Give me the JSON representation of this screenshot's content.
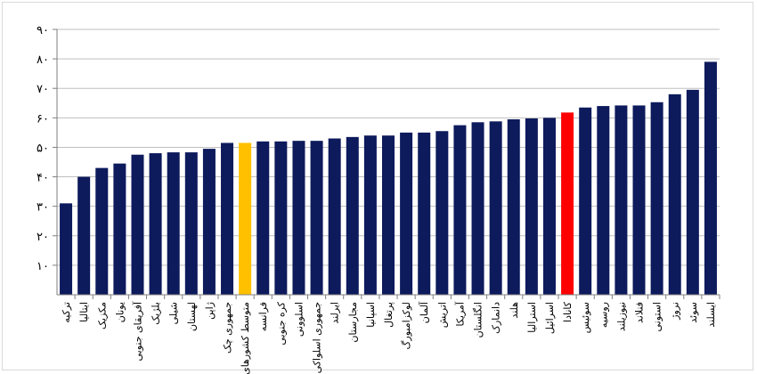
{
  "chart_data": {
    "type": "bar",
    "title": "",
    "xlabel": "",
    "ylabel": "",
    "ylim": [
      0,
      90
    ],
    "yticks": [
      10,
      20,
      30,
      40,
      50,
      60,
      70,
      80,
      90
    ],
    "ytick_labels": [
      "۱۰",
      "۲۰",
      "۳۰",
      "۴۰",
      "۵۰",
      "۶۰",
      "۷۰",
      "۸۰",
      "۹۰"
    ],
    "grid": true,
    "legend": "none",
    "categories": [
      "ترکیه",
      "ایتالیا",
      "مکزیک",
      "یونان",
      "آفریقای جنوبی",
      "بلژیک",
      "شیلی",
      "لهستان",
      "ژاپن",
      "جمهوری چک",
      "متوسط کشورهای",
      "فرانسه",
      "کره جنوبی",
      "اسلوونی",
      "جمهوری اسلواکی",
      "ایرلند",
      "مجارستان",
      "اسپانیا",
      "پرتغال",
      "لوکزامبورگ",
      "آلمان",
      "اتریش",
      "آمریکا",
      "انگلستان",
      "دانمارک",
      "هلند",
      "استرالیا",
      "اسرائیل",
      "کانادا",
      "سوئیس",
      "روسیه",
      "نیوزیلند",
      "فنلاند",
      "استونی",
      "نروژ",
      "سوئد",
      "ایسلند"
    ],
    "values": [
      31,
      40,
      43,
      44.5,
      47.5,
      48,
      48.3,
      48.3,
      49.5,
      51.5,
      51.5,
      52,
      52,
      52.2,
      52.2,
      53,
      53.5,
      54,
      54,
      55,
      55,
      55.5,
      57.5,
      58.5,
      58.8,
      59.5,
      59.8,
      60,
      61.8,
      63.5,
      64,
      64.2,
      64.2,
      65.3,
      68,
      69.5,
      79
    ],
    "colors": {
      "default": "#0d1a5c",
      "highlight_average": "#ffc000",
      "highlight_canada": "#ff0000",
      "grid": "#bfbfbf",
      "axis": "#7f7f7f"
    },
    "highlights": {
      "متوسط کشورهای": "#ffc000",
      "کانادا": "#ff0000"
    }
  }
}
